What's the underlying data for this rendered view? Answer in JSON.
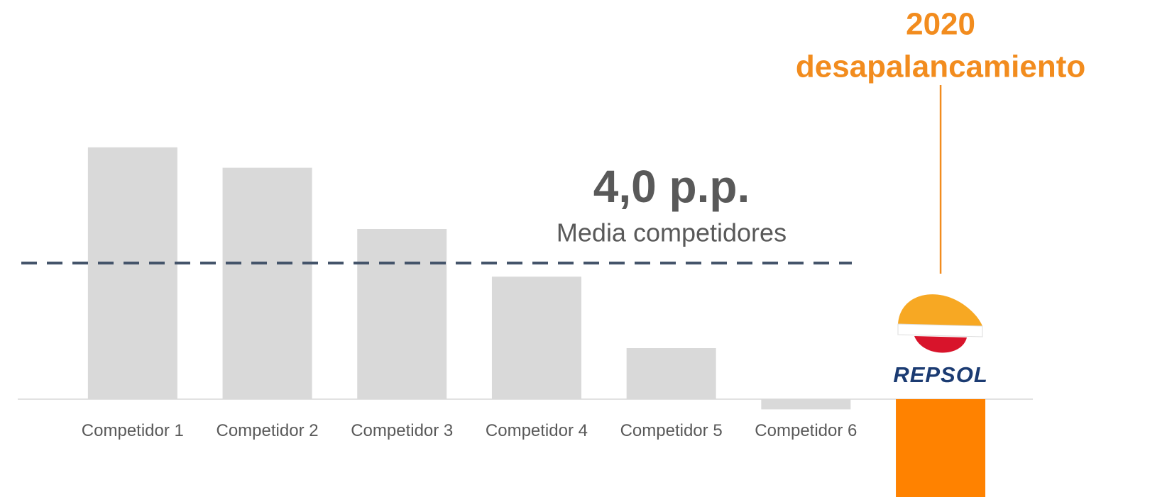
{
  "chart_data": {
    "type": "bar",
    "categories": [
      "Competidor 1",
      "Competidor 2",
      "Competidor 3",
      "Competidor 4",
      "Competidor 5",
      "Competidor 6",
      "REPSOL"
    ],
    "values": [
      7.4,
      6.8,
      5.0,
      3.6,
      1.5,
      -0.3,
      -3.0
    ],
    "colors": [
      "#d9d9d9",
      "#d9d9d9",
      "#d9d9d9",
      "#d9d9d9",
      "#d9d9d9",
      "#d9d9d9",
      "#ff8200"
    ],
    "reference_line": {
      "value": 4.0,
      "label": "4,0 p.p.",
      "sublabel": "Media competidores",
      "color": "#44546a"
    },
    "annotation": [
      "2020",
      "desapalancamiento"
    ],
    "annotation_color": "#f28c1e"
  }
}
